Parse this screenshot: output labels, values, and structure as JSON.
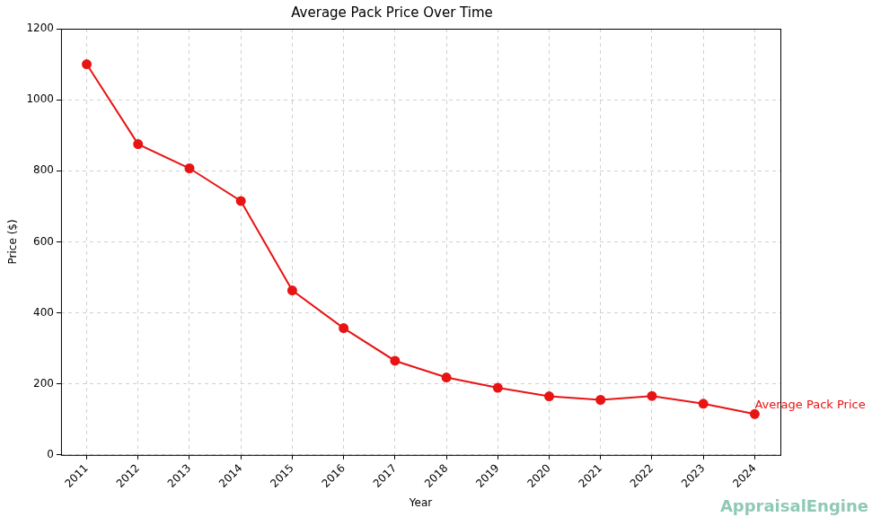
{
  "chart_data": {
    "type": "line",
    "title": "Average Pack Price Over Time",
    "x_label": "Year",
    "y_label": "Price ($)",
    "categories": [
      "2011",
      "2012",
      "2013",
      "2014",
      "2015",
      "2016",
      "2017",
      "2018",
      "2019",
      "2020",
      "2021",
      "2022",
      "2023",
      "2024"
    ],
    "values": [
      1100,
      875,
      807,
      715,
      463,
      357,
      265,
      218,
      189,
      165,
      155,
      166,
      144,
      115
    ],
    "color": "#e81414",
    "marker": "circle",
    "line_style": "solid",
    "ylim": [
      0,
      1200
    ],
    "yticks": [
      0,
      200,
      400,
      600,
      800,
      1000,
      1200
    ],
    "grid": true,
    "annotation": "Average Pack Price",
    "watermark": "AppraisalEngine"
  }
}
